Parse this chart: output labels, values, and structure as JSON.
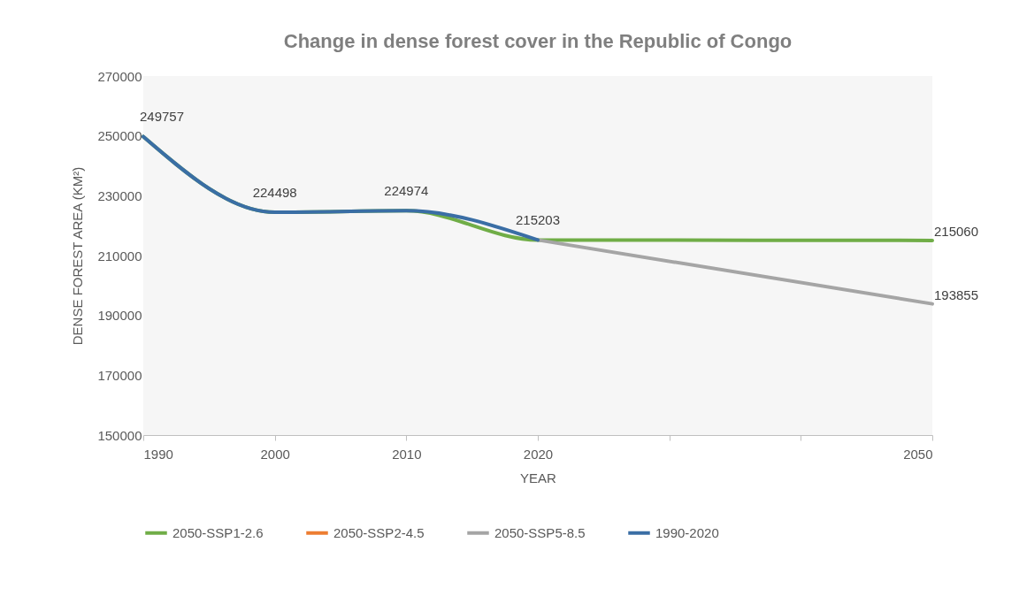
{
  "chart_data": {
    "type": "line",
    "title": "Change in dense forest cover in the Republic of Congo",
    "xlabel": "YEAR",
    "ylabel": "DENSE FOREST AREA (KM²)",
    "xlim": [
      1990,
      2050
    ],
    "xticks": [
      1990,
      2000,
      2010,
      2020,
      {
        "value": 2030,
        "label": null
      },
      {
        "value": 2040,
        "label": null
      },
      2050
    ],
    "ylim": [
      150000,
      270000
    ],
    "yticks": [
      150000,
      170000,
      190000,
      210000,
      230000,
      250000,
      270000
    ],
    "series": [
      {
        "name": "2050-SSP1-2.6",
        "color": "#70ad47",
        "x": [
          1990,
          2000,
          2010,
          2020,
          2050
        ],
        "values": [
          249757,
          224498,
          224974,
          215203,
          215060
        ],
        "value_labels": [
          null,
          null,
          null,
          null,
          "215060"
        ]
      },
      {
        "name": "2050-SSP2-4.5",
        "color": "#ed7d31"
      },
      {
        "name": "2050-SSP5-8.5",
        "color": "#a5a5a5",
        "x": [
          2020,
          2050
        ],
        "values": [
          215203,
          193855
        ],
        "value_labels": [
          null,
          "193855"
        ]
      },
      {
        "name": "1990-2020",
        "color": "#3a6ea5",
        "x": [
          1990,
          2000,
          2010,
          2020
        ],
        "values": [
          249757,
          224498,
          224974,
          215203
        ],
        "value_labels": [
          "249757",
          "224498",
          "224974",
          "215203"
        ]
      }
    ],
    "legend": "bottom",
    "grid": false,
    "line_style": "solid",
    "marker": "none"
  }
}
